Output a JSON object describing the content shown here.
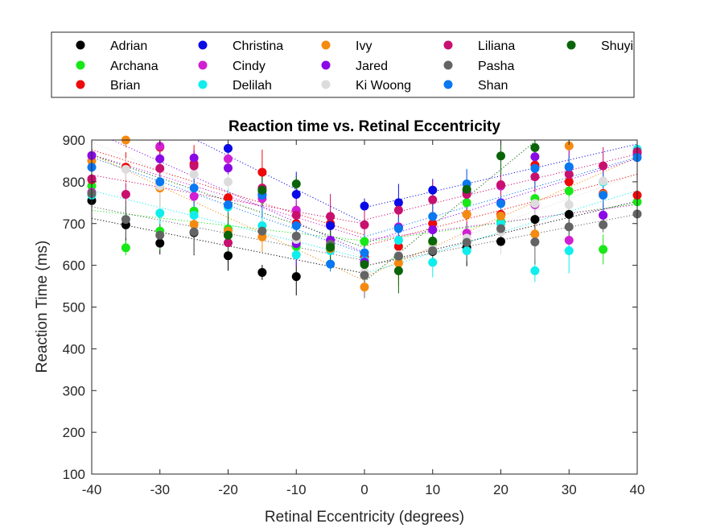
{
  "chart_data": {
    "type": "scatter",
    "title": "Reaction time vs. Retinal Eccentricity",
    "xlabel": "Retinal Eccentricity (degrees)",
    "ylabel": "Reaction Time (ms)",
    "xlim": [
      -40,
      40
    ],
    "ylim": [
      100,
      900
    ],
    "xticks": [
      -40,
      -30,
      -20,
      -10,
      0,
      10,
      20,
      30,
      40
    ],
    "yticks": [
      100,
      200,
      300,
      400,
      500,
      600,
      700,
      800,
      900
    ],
    "grid": false,
    "legend_position": "top-outside",
    "x": [
      -40,
      -35,
      -30,
      -25,
      -20,
      -15,
      -10,
      -5,
      0,
      5,
      10,
      15,
      20,
      25,
      30,
      35,
      40
    ],
    "series": [
      {
        "name": "Adrian",
        "color": "#000000",
        "values": [
          755,
          697,
          653,
          678,
          623,
          583,
          573,
          650,
          607,
          622,
          633,
          643,
          657,
          710,
          722,
          null,
          null
        ]
      },
      {
        "name": "Archana",
        "color": "#17e817",
        "values": [
          790,
          642,
          682,
          730,
          687,
          778,
          645,
          645,
          657,
          620,
          655,
          750,
          705,
          760,
          778,
          638,
          752
        ]
      },
      {
        "name": "Brian",
        "color": "#ee0a0a",
        "values": [
          805,
          835,
          883,
          843,
          762,
          823,
          700,
          700,
          620,
          645,
          700,
          722,
          722,
          840,
          800,
          772,
          768
        ]
      },
      {
        "name": "Christina",
        "color": "#0a0ae6",
        "values": [
          null,
          null,
          null,
          null,
          880,
          null,
          770,
          695,
          742,
          750,
          780,
          null,
          null,
          null,
          null,
          null,
          null
        ]
      },
      {
        "name": "Cindy",
        "color": "#d21fd2",
        "values": [
          775,
          null,
          885,
          765,
          855,
          760,
          732,
          660,
          612,
          692,
          685,
          677,
          790,
          745,
          660,
          720,
          null
        ]
      },
      {
        "name": "Delilah",
        "color": "#10eded",
        "values": [
          768,
          null,
          725,
          720,
          740,
          695,
          625,
          635,
          612,
          660,
          607,
          635,
          700,
          587,
          635,
          800,
          878
        ]
      },
      {
        "name": "Ivy",
        "color": "#f58a10",
        "values": [
          850,
          900,
          785,
          698,
          682,
          668,
          660,
          640,
          548,
          605,
          657,
          722,
          718,
          675,
          886,
          770,
          null
        ]
      },
      {
        "name": "Jared",
        "color": "#8a0ae6",
        "values": [
          863,
          null,
          855,
          857,
          833,
          770,
          652,
          660,
          608,
          690,
          685,
          775,
          750,
          860,
          835,
          720,
          868
        ]
      },
      {
        "name": "Ki Woong",
        "color": "#dcdcdc",
        "values": [
          null,
          830,
          790,
          818,
          800,
          785,
          662,
          650,
          583,
          625,
          640,
          665,
          680,
          748,
          745,
          802,
          null
        ]
      },
      {
        "name": "Liliana",
        "color": "#c8106e",
        "values": [
          807,
          770,
          832,
          838,
          654,
          785,
          720,
          717,
          697,
          732,
          757,
          770,
          793,
          812,
          818,
          838,
          872
        ]
      },
      {
        "name": "Pasha",
        "color": "#646464",
        "values": [
          772,
          710,
          672,
          680,
          672,
          682,
          670,
          650,
          576,
          622,
          635,
          655,
          688,
          656,
          692,
          697,
          723
        ]
      },
      {
        "name": "Shan",
        "color": "#0a78f0",
        "values": [
          835,
          null,
          800,
          785,
          745,
          768,
          695,
          603,
          630,
          688,
          717,
          795,
          748,
          832,
          836,
          768,
          858
        ]
      },
      {
        "name": "Shuyi",
        "color": "#0a640a",
        "values": [
          null,
          null,
          null,
          null,
          672,
          780,
          795,
          643,
          602,
          587,
          658,
          782,
          862,
          882,
          null,
          null,
          null
        ]
      }
    ]
  }
}
